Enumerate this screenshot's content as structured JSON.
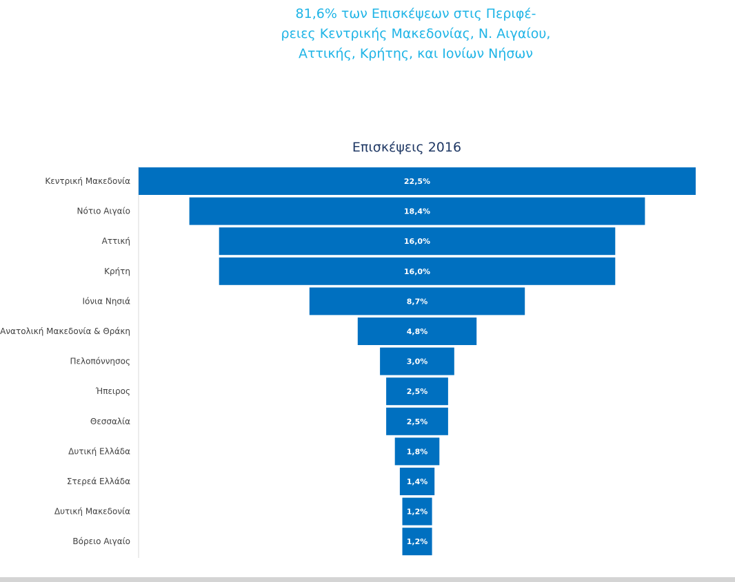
{
  "headline": {
    "lines": [
      "81,6% των Επισκέψεων στις Περιφέ-",
      "ρειες Κεντρικής Μακεδονίας, Ν. Αιγαίου,",
      "Αττικής, Κρήτης, και Ιονίων Νήσων"
    ],
    "color": "#1fb4e6"
  },
  "chart_data": {
    "type": "bar",
    "subtype": "funnel",
    "title": "Επισκέψεις 2016",
    "xlabel": "",
    "ylabel": "",
    "unit": "%",
    "bar_color": "#0070c0",
    "categories": [
      "Κεντρική Μακεδονία",
      "Νότιο Αιγαίο",
      "Αττική",
      "Κρήτη",
      "Ιόνια Νησιά",
      "Ανατολική Μακεδονία & Θράκη",
      "Πελοπόννησος",
      "Ήπειρος",
      "Θεσσαλία",
      "Δυτική Ελλάδα",
      "Στερεά Ελλάδα",
      "Δυτική Μακεδονία",
      "Βόρειο Αιγαίο"
    ],
    "values": [
      22.5,
      18.4,
      16.0,
      16.0,
      8.7,
      4.8,
      3.0,
      2.5,
      2.5,
      1.8,
      1.4,
      1.2,
      1.2
    ],
    "value_labels": [
      "22,5%",
      "18,4%",
      "16,0%",
      "16,0%",
      "8,7%",
      "4,8%",
      "3,0%",
      "2,5%",
      "2,5%",
      "1,8%",
      "1,4%",
      "1,2%",
      "1,2%"
    ],
    "grid": false,
    "legend": "none"
  }
}
